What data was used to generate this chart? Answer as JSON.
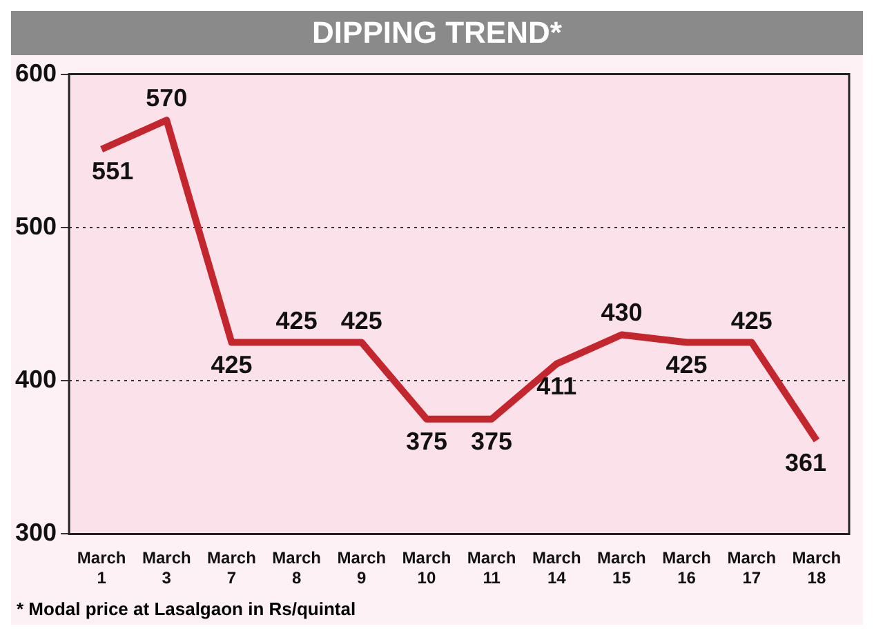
{
  "chart_data": {
    "type": "line",
    "title": "DIPPING TREND*",
    "categories": [
      "March 1",
      "March 3",
      "March 7",
      "March 8",
      "March 9",
      "March 10",
      "March 11",
      "March 14",
      "March 15",
      "March 16",
      "March 17",
      "March 18"
    ],
    "series": [
      {
        "color": "#c4262e",
        "values": [
          551,
          570,
          425,
          425,
          425,
          375,
          375,
          411,
          430,
          425,
          425,
          361
        ]
      }
    ],
    "ylim": [
      300,
      600
    ],
    "yticks": [
      300,
      400,
      500,
      600
    ],
    "grid": "y",
    "legend": false,
    "marker": "none",
    "line_style": "solid",
    "data_labels": true,
    "annotations": [
      "* Modal price at Lasalgaon in Rs/quintal"
    ]
  }
}
